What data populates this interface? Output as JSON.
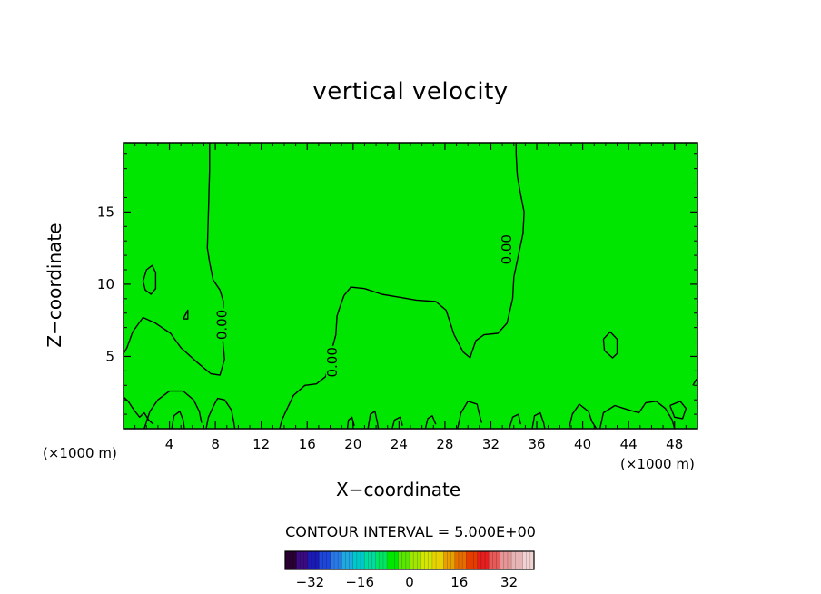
{
  "chart_data": {
    "type": "contour",
    "title": "vertical velocity",
    "xlabel": "X−coordinate",
    "ylabel": "Z−coordinate",
    "x_unit": "(×1000 m)",
    "xlim": [
      0,
      50
    ],
    "ylim": [
      0,
      19.8
    ],
    "x_ticks": [
      4,
      8,
      12,
      16,
      20,
      24,
      28,
      32,
      36,
      40,
      44,
      48
    ],
    "y_ticks": [
      5,
      10,
      15
    ],
    "field_color": "#00e600",
    "contour_interval_text": "CONTOUR INTERVAL = 5.000E+00",
    "contour_level": 0,
    "contour_labels": [
      {
        "text": "0.00",
        "x": 8.6,
        "z": 7.2
      },
      {
        "text": "0.00",
        "x": 18.2,
        "z": 4.6
      },
      {
        "text": "0.00",
        "x": 33.4,
        "z": 12.4
      }
    ],
    "contours": [
      {
        "points": [
          [
            7.5,
            19.8
          ],
          [
            7.5,
            18
          ],
          [
            7.4,
            15
          ],
          [
            7.3,
            12.5
          ],
          [
            7.5,
            11.5
          ],
          [
            7.8,
            10.3
          ],
          [
            8.4,
            9.6
          ],
          [
            8.7,
            8.8
          ],
          [
            8.6,
            6.5
          ],
          [
            8.8,
            4.8
          ],
          [
            8.4,
            3.7
          ],
          [
            7.6,
            3.8
          ],
          [
            6.4,
            4.6
          ],
          [
            5.0,
            5.6
          ],
          [
            4.1,
            6.6
          ],
          [
            2.8,
            7.3
          ],
          [
            1.7,
            7.7
          ],
          [
            0.8,
            6.7
          ],
          [
            0.3,
            5.6
          ],
          [
            0,
            5.2
          ]
        ]
      },
      {
        "points": [
          [
            34.2,
            19.8
          ],
          [
            34.2,
            19
          ],
          [
            34.3,
            17.5
          ],
          [
            34.6,
            16.2
          ],
          [
            34.9,
            15
          ],
          [
            34.8,
            13.5
          ],
          [
            34.4,
            12
          ],
          [
            34.0,
            10.5
          ],
          [
            33.9,
            9
          ],
          [
            33.4,
            7.3
          ],
          [
            32.6,
            6.6
          ],
          [
            31.4,
            6.5
          ],
          [
            30.7,
            6.1
          ],
          [
            30.3,
            5.2
          ],
          [
            30.2,
            4.9
          ],
          [
            29.6,
            5.3
          ],
          [
            28.8,
            6.5
          ],
          [
            28.1,
            8.2
          ],
          [
            27.2,
            8.8
          ],
          [
            25.5,
            8.9
          ],
          [
            24,
            9.1
          ],
          [
            22.5,
            9.3
          ],
          [
            21,
            9.7
          ],
          [
            19.8,
            9.8
          ],
          [
            19.2,
            9.2
          ],
          [
            18.8,
            8.3
          ],
          [
            18.6,
            7.8
          ],
          [
            18.5,
            6.5
          ],
          [
            18.2,
            5.6
          ],
          [
            18.0,
            4.6
          ],
          [
            17.6,
            3.6
          ],
          [
            16.8,
            3.1
          ],
          [
            15.8,
            3.0
          ],
          [
            14.8,
            2.3
          ],
          [
            14.2,
            1.3
          ],
          [
            13.8,
            0.6
          ],
          [
            13.6,
            0
          ]
        ]
      },
      {
        "points": [
          [
            1.7,
            10.2
          ],
          [
            2.0,
            11.0
          ],
          [
            2.5,
            11.3
          ],
          [
            2.8,
            10.8
          ],
          [
            2.8,
            9.7
          ],
          [
            2.4,
            9.3
          ],
          [
            1.9,
            9.6
          ],
          [
            1.7,
            10.2
          ]
        ]
      },
      {
        "points": [
          [
            5.2,
            7.6
          ],
          [
            5.6,
            8.2
          ],
          [
            5.6,
            7.6
          ],
          [
            5.2,
            7.6
          ]
        ]
      },
      {
        "points": [
          [
            41.8,
            6.2
          ],
          [
            42.4,
            6.7
          ],
          [
            43.0,
            6.2
          ],
          [
            43.0,
            5.2
          ],
          [
            42.6,
            4.9
          ],
          [
            41.9,
            5.4
          ],
          [
            41.8,
            6.2
          ]
        ]
      },
      {
        "points": [
          [
            0,
            2.2
          ],
          [
            0.4,
            1.9
          ],
          [
            0.9,
            1.3
          ],
          [
            1.4,
            0.8
          ],
          [
            1.8,
            1.1
          ],
          [
            2.2,
            0.6
          ],
          [
            2.6,
            0.3
          ]
        ]
      },
      {
        "points": [
          [
            1.8,
            0
          ],
          [
            2.3,
            1.2
          ],
          [
            3.0,
            2.0
          ],
          [
            4.0,
            2.6
          ],
          [
            5.2,
            2.6
          ],
          [
            6.1,
            2.0
          ],
          [
            6.6,
            1.2
          ],
          [
            6.8,
            0.4
          ]
        ]
      },
      {
        "points": [
          [
            7.2,
            0
          ],
          [
            7.4,
            0.8
          ],
          [
            7.8,
            1.5
          ],
          [
            8.2,
            2.1
          ],
          [
            8.8,
            2.0
          ],
          [
            9.4,
            1.3
          ],
          [
            9.6,
            0.5
          ],
          [
            9.7,
            0
          ]
        ]
      },
      {
        "points": [
          [
            4.2,
            0
          ],
          [
            4.4,
            0.9
          ],
          [
            4.9,
            1.2
          ],
          [
            5.2,
            0.6
          ],
          [
            5.3,
            0
          ]
        ]
      },
      {
        "points": [
          [
            29.1,
            0
          ],
          [
            29.4,
            1.1
          ],
          [
            30.0,
            1.9
          ],
          [
            30.8,
            1.7
          ],
          [
            31.0,
            1.0
          ],
          [
            31.2,
            0.4
          ]
        ]
      },
      {
        "points": [
          [
            38.8,
            0
          ],
          [
            39.1,
            1.0
          ],
          [
            39.7,
            1.7
          ],
          [
            40.5,
            1.2
          ],
          [
            40.8,
            0.5
          ],
          [
            41.2,
            0
          ]
        ]
      },
      {
        "points": [
          [
            41.5,
            0
          ],
          [
            41.8,
            1.1
          ],
          [
            42.8,
            1.6
          ],
          [
            44.0,
            1.3
          ],
          [
            44.9,
            1.1
          ],
          [
            45.5,
            1.8
          ],
          [
            46.4,
            1.9
          ],
          [
            47.2,
            1.4
          ],
          [
            47.8,
            0.6
          ],
          [
            48.0,
            0
          ]
        ]
      },
      {
        "points": [
          [
            47.6,
            1.6
          ],
          [
            48.0,
            0.8
          ],
          [
            48.7,
            0.7
          ],
          [
            49.0,
            1.4
          ],
          [
            48.5,
            1.9
          ],
          [
            47.6,
            1.6
          ]
        ]
      },
      {
        "points": [
          [
            49.6,
            3.0
          ],
          [
            49.9,
            3.4
          ],
          [
            50,
            3.2
          ]
        ]
      },
      {
        "points": [
          [
            23.4,
            0
          ],
          [
            23.6,
            0.6
          ],
          [
            24.1,
            0.8
          ],
          [
            24.3,
            0.2
          ]
        ]
      },
      {
        "points": [
          [
            26.3,
            0
          ],
          [
            26.5,
            0.7
          ],
          [
            26.9,
            0.9
          ],
          [
            27.2,
            0.3
          ]
        ]
      },
      {
        "points": [
          [
            35.6,
            0
          ],
          [
            35.8,
            0.9
          ],
          [
            36.3,
            1.1
          ],
          [
            36.6,
            0.4
          ],
          [
            36.7,
            0
          ]
        ]
      },
      {
        "points": [
          [
            33.6,
            0
          ],
          [
            33.9,
            0.8
          ],
          [
            34.4,
            1.0
          ],
          [
            34.6,
            0.3
          ]
        ]
      },
      {
        "points": [
          [
            19.5,
            0
          ],
          [
            19.6,
            0.6
          ],
          [
            19.9,
            0.8
          ],
          [
            20.1,
            0.2
          ]
        ]
      },
      {
        "points": [
          [
            21.3,
            0
          ],
          [
            21.5,
            1.0
          ],
          [
            21.9,
            1.2
          ],
          [
            22.1,
            0.5
          ],
          [
            22.2,
            0
          ]
        ]
      }
    ],
    "colorbar": {
      "ticks": [
        "−32",
        "−16",
        "0",
        "16",
        "32"
      ],
      "tick_values": [
        -32,
        -16,
        0,
        16,
        32
      ],
      "range": [
        -40,
        40
      ],
      "colors": [
        "#2a0033",
        "#3a0a80",
        "#1a1ab4",
        "#1e46d8",
        "#2a7ae6",
        "#20a8e0",
        "#00c8c8",
        "#00dca0",
        "#00e664",
        "#00e600",
        "#5ae600",
        "#a0e600",
        "#d2e600",
        "#e6d200",
        "#e6a000",
        "#e66e00",
        "#e63c00",
        "#e61e1e",
        "#e65a5a",
        "#e69696",
        "#e6b4b4",
        "#f0d2d2"
      ]
    }
  }
}
